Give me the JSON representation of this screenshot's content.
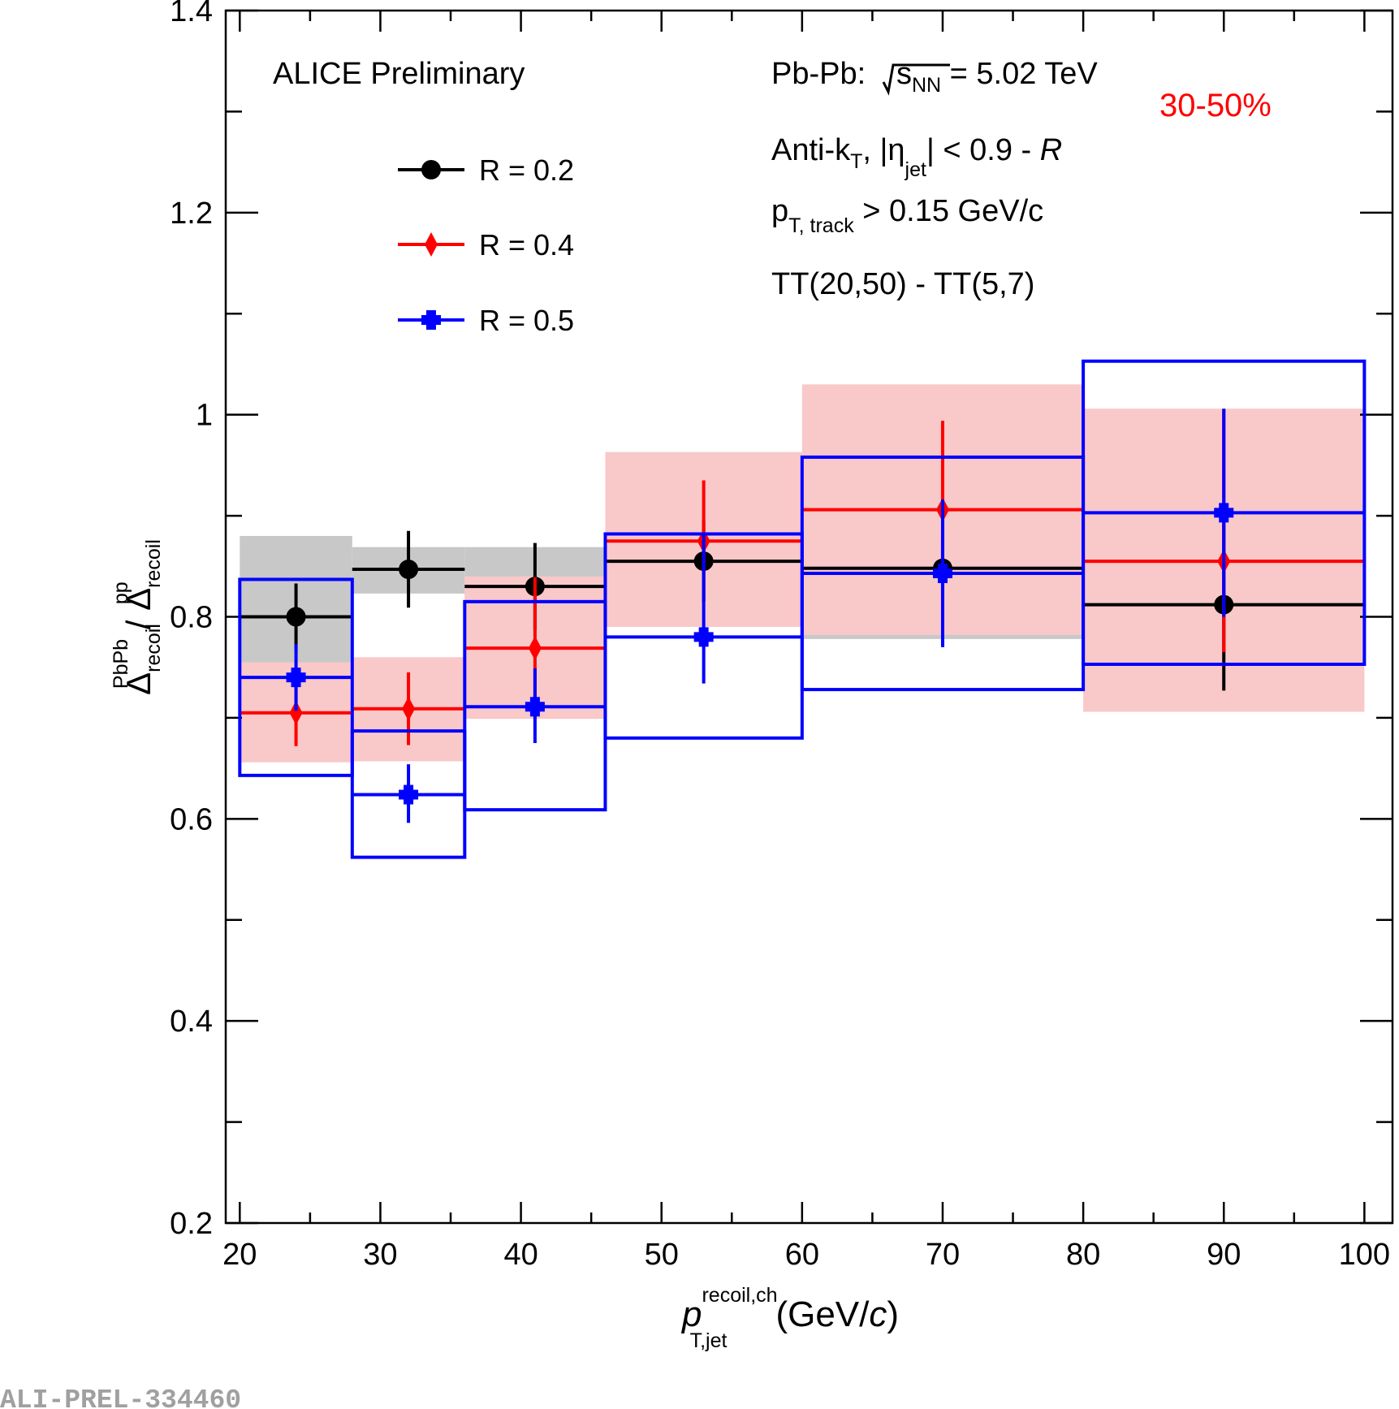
{
  "chart_data": {
    "type": "scatter",
    "title": "ALICE Preliminary",
    "xlabel": {
      "main": "p",
      "sup": "recoil,ch",
      "sub": "T,jet",
      "units_pre": "(GeV/",
      "units_c": "c",
      "units_post": ")"
    },
    "ylabel": {
      "num": "Δ",
      "num_sub": "recoil",
      "num_sup": "PbPb",
      "sep": " / ",
      "den": "Δ",
      "den_sub": "recoil",
      "den_sup": "pp"
    },
    "xlim": [
      19,
      102
    ],
    "ylim": [
      0.2,
      1.4
    ],
    "x_major_ticks": [
      20,
      30,
      40,
      50,
      60,
      70,
      80,
      90,
      100
    ],
    "x_tick_labels": [
      "20",
      "30",
      "40",
      "50",
      "60",
      "70",
      "80",
      "90",
      "100"
    ],
    "y_major_ticks": [
      0.2,
      0.4,
      0.6,
      0.8,
      1.0,
      1.2,
      1.4
    ],
    "y_tick_labels": [
      "0.2",
      "0.4",
      "0.6",
      "0.8",
      "1",
      "1.2",
      "1.4"
    ],
    "annotations": {
      "collision_pre": "Pb-Pb: ",
      "sqrt_s": "s",
      "sqrt_s_sub": "NN",
      "collision_post": " = 5.02 TeV",
      "centrality": "30-50%",
      "jet_algo_pre": "Anti-k",
      "jet_algo_sub": "T",
      "jet_algo_mid": ", |η",
      "jet_algo_eta_sub": "jet",
      "jet_algo_post": "| < 0.9 - ",
      "jet_algo_R": "R",
      "track_pre": "p",
      "track_sub": "T, track",
      "track_post": " > 0.15 GeV/c",
      "trigger": "TT(20,50) - TT(5,7)"
    },
    "watermark": "ALI-PREL-334460",
    "colors": {
      "r02": "#000000",
      "r04": "#ff0000",
      "r05": "#0000ff",
      "sys_gray": "#c8c8c8",
      "sys_pink": "#f9c8c8",
      "centrality": "#ff0000"
    },
    "series": [
      {
        "name": "R = 0.2",
        "marker": "circle",
        "sys_style": "fill_gray",
        "points": [
          {
            "x": 24,
            "xlo": 20,
            "xhi": 28,
            "y": 0.8,
            "elo": 0.033,
            "ehi": 0.033,
            "slo": 0.755,
            "shi": 0.88
          },
          {
            "x": 32,
            "xlo": 28,
            "xhi": 36,
            "y": 0.847,
            "elo": 0.038,
            "ehi": 0.038,
            "slo": 0.823,
            "shi": 0.869
          },
          {
            "x": 41,
            "xlo": 36,
            "xhi": 46,
            "y": 0.83,
            "elo": 0.043,
            "ehi": 0.043,
            "slo": 0.815,
            "shi": 0.869
          },
          {
            "x": 53,
            "xlo": 46,
            "xhi": 60,
            "y": 0.855,
            "elo": 0.04,
            "ehi": 0.04,
            "slo": 0.835,
            "shi": 0.875
          },
          {
            "x": 70,
            "xlo": 60,
            "xhi": 80,
            "y": 0.848,
            "elo": 0.03,
            "ehi": 0.03,
            "slo": 0.778,
            "shi": 0.858
          },
          {
            "x": 90,
            "xlo": 80,
            "xhi": 100,
            "y": 0.812,
            "elo": 0.085,
            "ehi": 0.085,
            "slo": 0.778,
            "shi": 0.858
          }
        ]
      },
      {
        "name": "R = 0.4",
        "marker": "diamond",
        "sys_style": "fill_pink",
        "points": [
          {
            "x": 24,
            "xlo": 20,
            "xhi": 28,
            "y": 0.705,
            "elo": 0.033,
            "ehi": 0.033,
            "slo": 0.656,
            "shi": 0.755
          },
          {
            "x": 32,
            "xlo": 28,
            "xhi": 36,
            "y": 0.709,
            "elo": 0.036,
            "ehi": 0.036,
            "slo": 0.657,
            "shi": 0.76
          },
          {
            "x": 41,
            "xlo": 36,
            "xhi": 46,
            "y": 0.769,
            "elo": 0.07,
            "ehi": 0.07,
            "slo": 0.699,
            "shi": 0.84
          },
          {
            "x": 53,
            "xlo": 46,
            "xhi": 60,
            "y": 0.875,
            "elo": 0.06,
            "ehi": 0.06,
            "slo": 0.79,
            "shi": 0.963
          },
          {
            "x": 70,
            "xlo": 60,
            "xhi": 80,
            "y": 0.906,
            "elo": 0.088,
            "ehi": 0.088,
            "slo": 0.782,
            "shi": 1.03
          },
          {
            "x": 90,
            "xlo": 80,
            "xhi": 100,
            "y": 0.855,
            "elo": 0.09,
            "ehi": 0.15,
            "slo": 0.706,
            "shi": 1.006
          }
        ]
      },
      {
        "name": "R = 0.5",
        "marker": "cross",
        "sys_style": "box_blue",
        "points": [
          {
            "x": 24,
            "xlo": 20,
            "xhi": 28,
            "y": 0.74,
            "elo": 0.033,
            "ehi": 0.033,
            "slo": 0.643,
            "shi": 0.837
          },
          {
            "x": 32,
            "xlo": 28,
            "xhi": 36,
            "y": 0.624,
            "elo": 0.028,
            "ehi": 0.03,
            "slo": 0.562,
            "shi": 0.687
          },
          {
            "x": 41,
            "xlo": 36,
            "xhi": 46,
            "y": 0.711,
            "elo": 0.036,
            "ehi": 0.038,
            "slo": 0.609,
            "shi": 0.815
          },
          {
            "x": 53,
            "xlo": 46,
            "xhi": 60,
            "y": 0.78,
            "elo": 0.046,
            "ehi": 0.103,
            "slo": 0.68,
            "shi": 0.882
          },
          {
            "x": 70,
            "xlo": 60,
            "xhi": 80,
            "y": 0.843,
            "elo": 0.073,
            "ehi": 0.073,
            "slo": 0.728,
            "shi": 0.958
          },
          {
            "x": 90,
            "xlo": 80,
            "xhi": 100,
            "y": 0.903,
            "elo": 0.103,
            "ehi": 0.103,
            "slo": 0.753,
            "shi": 1.053
          }
        ]
      }
    ]
  }
}
